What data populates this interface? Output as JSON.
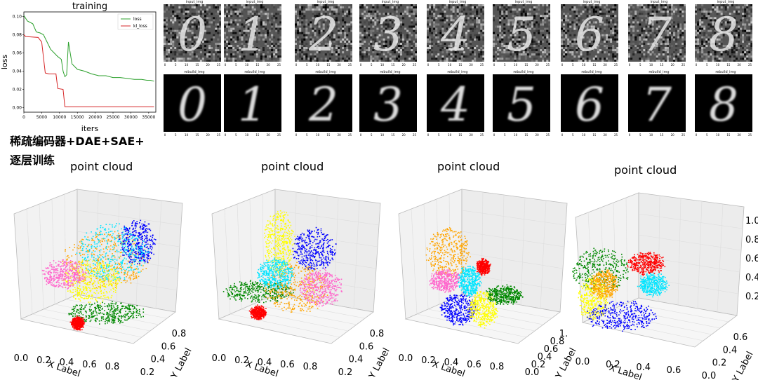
{
  "caption": {
    "line1": "稀疏编码器+DAE+SAE+",
    "line2": "逐层训练"
  },
  "colors": {
    "loss": "#2ca02c",
    "kl_loss": "#d62728",
    "digit_palette": [
      "#ff0000",
      "#0000ff",
      "#008800",
      "#ffa500",
      "#ffff00",
      "#00e5ff",
      "#ff66cc",
      "#a0522d",
      "#7f7f7f",
      "#8a2be2"
    ]
  },
  "recon": {
    "input_title": "input_img",
    "rebuild_title": "rebuild_img",
    "digits": [
      "0",
      "1",
      "2",
      "3",
      "4",
      "5",
      "6",
      "7",
      "8"
    ],
    "ticks": [
      "0",
      "5",
      "10",
      "15",
      "20",
      "25"
    ]
  },
  "chart_data": [
    {
      "type": "line",
      "title": "training",
      "xlabel": "iters",
      "ylabel": "loss",
      "xlim": [
        0,
        37000
      ],
      "ylim": [
        -0.005,
        0.105
      ],
      "xticks": [
        "0",
        "5000",
        "10000",
        "15000",
        "20000",
        "25000",
        "30000",
        "35000"
      ],
      "yticks": [
        "0.00",
        "0.02",
        "0.04",
        "0.06",
        "0.08",
        "0.10"
      ],
      "legend": "top-right",
      "series": [
        {
          "name": "loss",
          "x": [
            0,
            1000,
            2500,
            3500,
            4500,
            5500,
            6500,
            7500,
            8500,
            9500,
            10500,
            11000,
            11500,
            12000,
            12500,
            13500,
            15000,
            17000,
            19000,
            21000,
            23000,
            25000,
            27000,
            29000,
            31000,
            33000,
            34500,
            35500,
            36500
          ],
          "y": [
            0.101,
            0.095,
            0.092,
            0.083,
            0.082,
            0.08,
            0.072,
            0.064,
            0.06,
            0.056,
            0.053,
            0.04,
            0.034,
            0.036,
            0.072,
            0.048,
            0.042,
            0.04,
            0.037,
            0.035,
            0.035,
            0.033,
            0.033,
            0.032,
            0.031,
            0.031,
            0.03,
            0.03,
            0.029
          ]
        },
        {
          "name": "kl_loss",
          "x": [
            0,
            500,
            4000,
            5000,
            6000,
            7000,
            9000,
            9500,
            11000,
            11500,
            14000,
            36500
          ],
          "y": [
            0.08,
            0.078,
            0.077,
            0.072,
            0.038,
            0.037,
            0.037,
            0.021,
            0.02,
            0.001,
            0.001,
            0.001
          ]
        }
      ]
    },
    {
      "type": "scatter",
      "title": "point cloud",
      "xlabel": "X Label",
      "ylabel": "Y Label",
      "xticks": [
        "0.0",
        "0.2",
        "0.4",
        "0.6",
        "0.8"
      ],
      "yticks": [
        "0.2",
        "0.4",
        "0.6",
        "0.8"
      ],
      "zticks": []
    },
    {
      "type": "scatter",
      "title": "point cloud",
      "xlabel": "X Label",
      "ylabel": "Y Label",
      "xticks": [
        "0.0",
        "0.2",
        "0.4",
        "0.6",
        "0.8"
      ],
      "yticks": [
        "0.2",
        "0.4",
        "0.6",
        "0.8"
      ],
      "zticks": []
    },
    {
      "type": "scatter",
      "title": "point cloud",
      "xlabel": "X Label",
      "ylabel": "Y Label",
      "xticks": [
        "0.0",
        "0.2",
        "0.4",
        "0.6",
        "0.8"
      ],
      "yticks": [
        "0.0",
        "0.2",
        "0.4",
        "0.6",
        "0.8",
        "1."
      ],
      "zticks": []
    },
    {
      "type": "scatter",
      "title": "point cloud",
      "xlabel": "X Label",
      "ylabel": "Y Label",
      "xticks": [
        "0.0",
        "0.2",
        "0.4",
        "0.6"
      ],
      "yticks": [
        "0.0",
        "0.2",
        "0.4",
        "0.6"
      ],
      "zticks": [
        "0.2",
        "0.4",
        "0.6",
        "0.8",
        "1.0"
      ]
    }
  ]
}
